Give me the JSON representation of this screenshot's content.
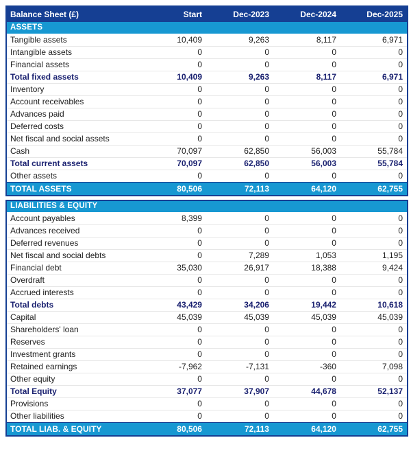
{
  "colors": {
    "header_navy": "#153F93",
    "band_blue": "#1798D2",
    "subtotal_text_navy": "#1A2170",
    "body_text": "#212121",
    "row_separator": "#E7E7E7"
  },
  "chart_data": {
    "type": "table",
    "title": "Balance Sheet (£)",
    "columns": [
      "Start",
      "Dec-2023",
      "Dec-2024",
      "Dec-2025"
    ],
    "sections": [
      {
        "name": "ASSETS",
        "rows": [
          {
            "label": "Tangible assets",
            "values": [
              "10,409",
              "9,263",
              "8,117",
              "6,971"
            ],
            "bold": false
          },
          {
            "label": "Intangible assets",
            "values": [
              "0",
              "0",
              "0",
              "0"
            ],
            "bold": false
          },
          {
            "label": "Financial assets",
            "values": [
              "0",
              "0",
              "0",
              "0"
            ],
            "bold": false
          },
          {
            "label": "Total fixed assets",
            "values": [
              "10,409",
              "9,263",
              "8,117",
              "6,971"
            ],
            "bold": true
          },
          {
            "label": "Inventory",
            "values": [
              "0",
              "0",
              "0",
              "0"
            ],
            "bold": false
          },
          {
            "label": "Account receivables",
            "values": [
              "0",
              "0",
              "0",
              "0"
            ],
            "bold": false
          },
          {
            "label": "Advances paid",
            "values": [
              "0",
              "0",
              "0",
              "0"
            ],
            "bold": false
          },
          {
            "label": "Deferred costs",
            "values": [
              "0",
              "0",
              "0",
              "0"
            ],
            "bold": false
          },
          {
            "label": "Net fiscal and social assets",
            "values": [
              "0",
              "0",
              "0",
              "0"
            ],
            "bold": false
          },
          {
            "label": "Cash",
            "values": [
              "70,097",
              "62,850",
              "56,003",
              "55,784"
            ],
            "bold": false
          },
          {
            "label": "Total current assets",
            "values": [
              "70,097",
              "62,850",
              "56,003",
              "55,784"
            ],
            "bold": true
          },
          {
            "label": "Other assets",
            "values": [
              "0",
              "0",
              "0",
              "0"
            ],
            "bold": false
          }
        ],
        "total": {
          "label": "TOTAL ASSETS",
          "values": [
            "80,506",
            "72,113",
            "64,120",
            "62,755"
          ]
        }
      },
      {
        "name": "LIABILITIES & EQUITY",
        "rows": [
          {
            "label": "Account payables",
            "values": [
              "8,399",
              "0",
              "0",
              "0"
            ],
            "bold": false
          },
          {
            "label": "Advances received",
            "values": [
              "0",
              "0",
              "0",
              "0"
            ],
            "bold": false
          },
          {
            "label": "Deferred revenues",
            "values": [
              "0",
              "0",
              "0",
              "0"
            ],
            "bold": false
          },
          {
            "label": "Net fiscal and social debts",
            "values": [
              "0",
              "7,289",
              "1,053",
              "1,195"
            ],
            "bold": false
          },
          {
            "label": "Financial debt",
            "values": [
              "35,030",
              "26,917",
              "18,388",
              "9,424"
            ],
            "bold": false
          },
          {
            "label": "Overdraft",
            "values": [
              "0",
              "0",
              "0",
              "0"
            ],
            "bold": false
          },
          {
            "label": "Accrued interests",
            "values": [
              "0",
              "0",
              "0",
              "0"
            ],
            "bold": false
          },
          {
            "label": "Total debts",
            "values": [
              "43,429",
              "34,206",
              "19,442",
              "10,618"
            ],
            "bold": true
          },
          {
            "label": "Capital",
            "values": [
              "45,039",
              "45,039",
              "45,039",
              "45,039"
            ],
            "bold": false
          },
          {
            "label": "Shareholders' loan",
            "values": [
              "0",
              "0",
              "0",
              "0"
            ],
            "bold": false
          },
          {
            "label": "Reserves",
            "values": [
              "0",
              "0",
              "0",
              "0"
            ],
            "bold": false
          },
          {
            "label": "Investment grants",
            "values": [
              "0",
              "0",
              "0",
              "0"
            ],
            "bold": false
          },
          {
            "label": "Retained earnings",
            "values": [
              "-7,962",
              "-7,131",
              "-360",
              "7,098"
            ],
            "bold": false
          },
          {
            "label": "Other equity",
            "values": [
              "0",
              "0",
              "0",
              "0"
            ],
            "bold": false
          },
          {
            "label": "Total Equity",
            "values": [
              "37,077",
              "37,907",
              "44,678",
              "52,137"
            ],
            "bold": true
          },
          {
            "label": "Provisions",
            "values": [
              "0",
              "0",
              "0",
              "0"
            ],
            "bold": false
          },
          {
            "label": "Other liabilities",
            "values": [
              "0",
              "0",
              "0",
              "0"
            ],
            "bold": false
          }
        ],
        "total": {
          "label": "TOTAL LIAB. & EQUITY",
          "values": [
            "80,506",
            "72,113",
            "64,120",
            "62,755"
          ]
        }
      }
    ]
  }
}
